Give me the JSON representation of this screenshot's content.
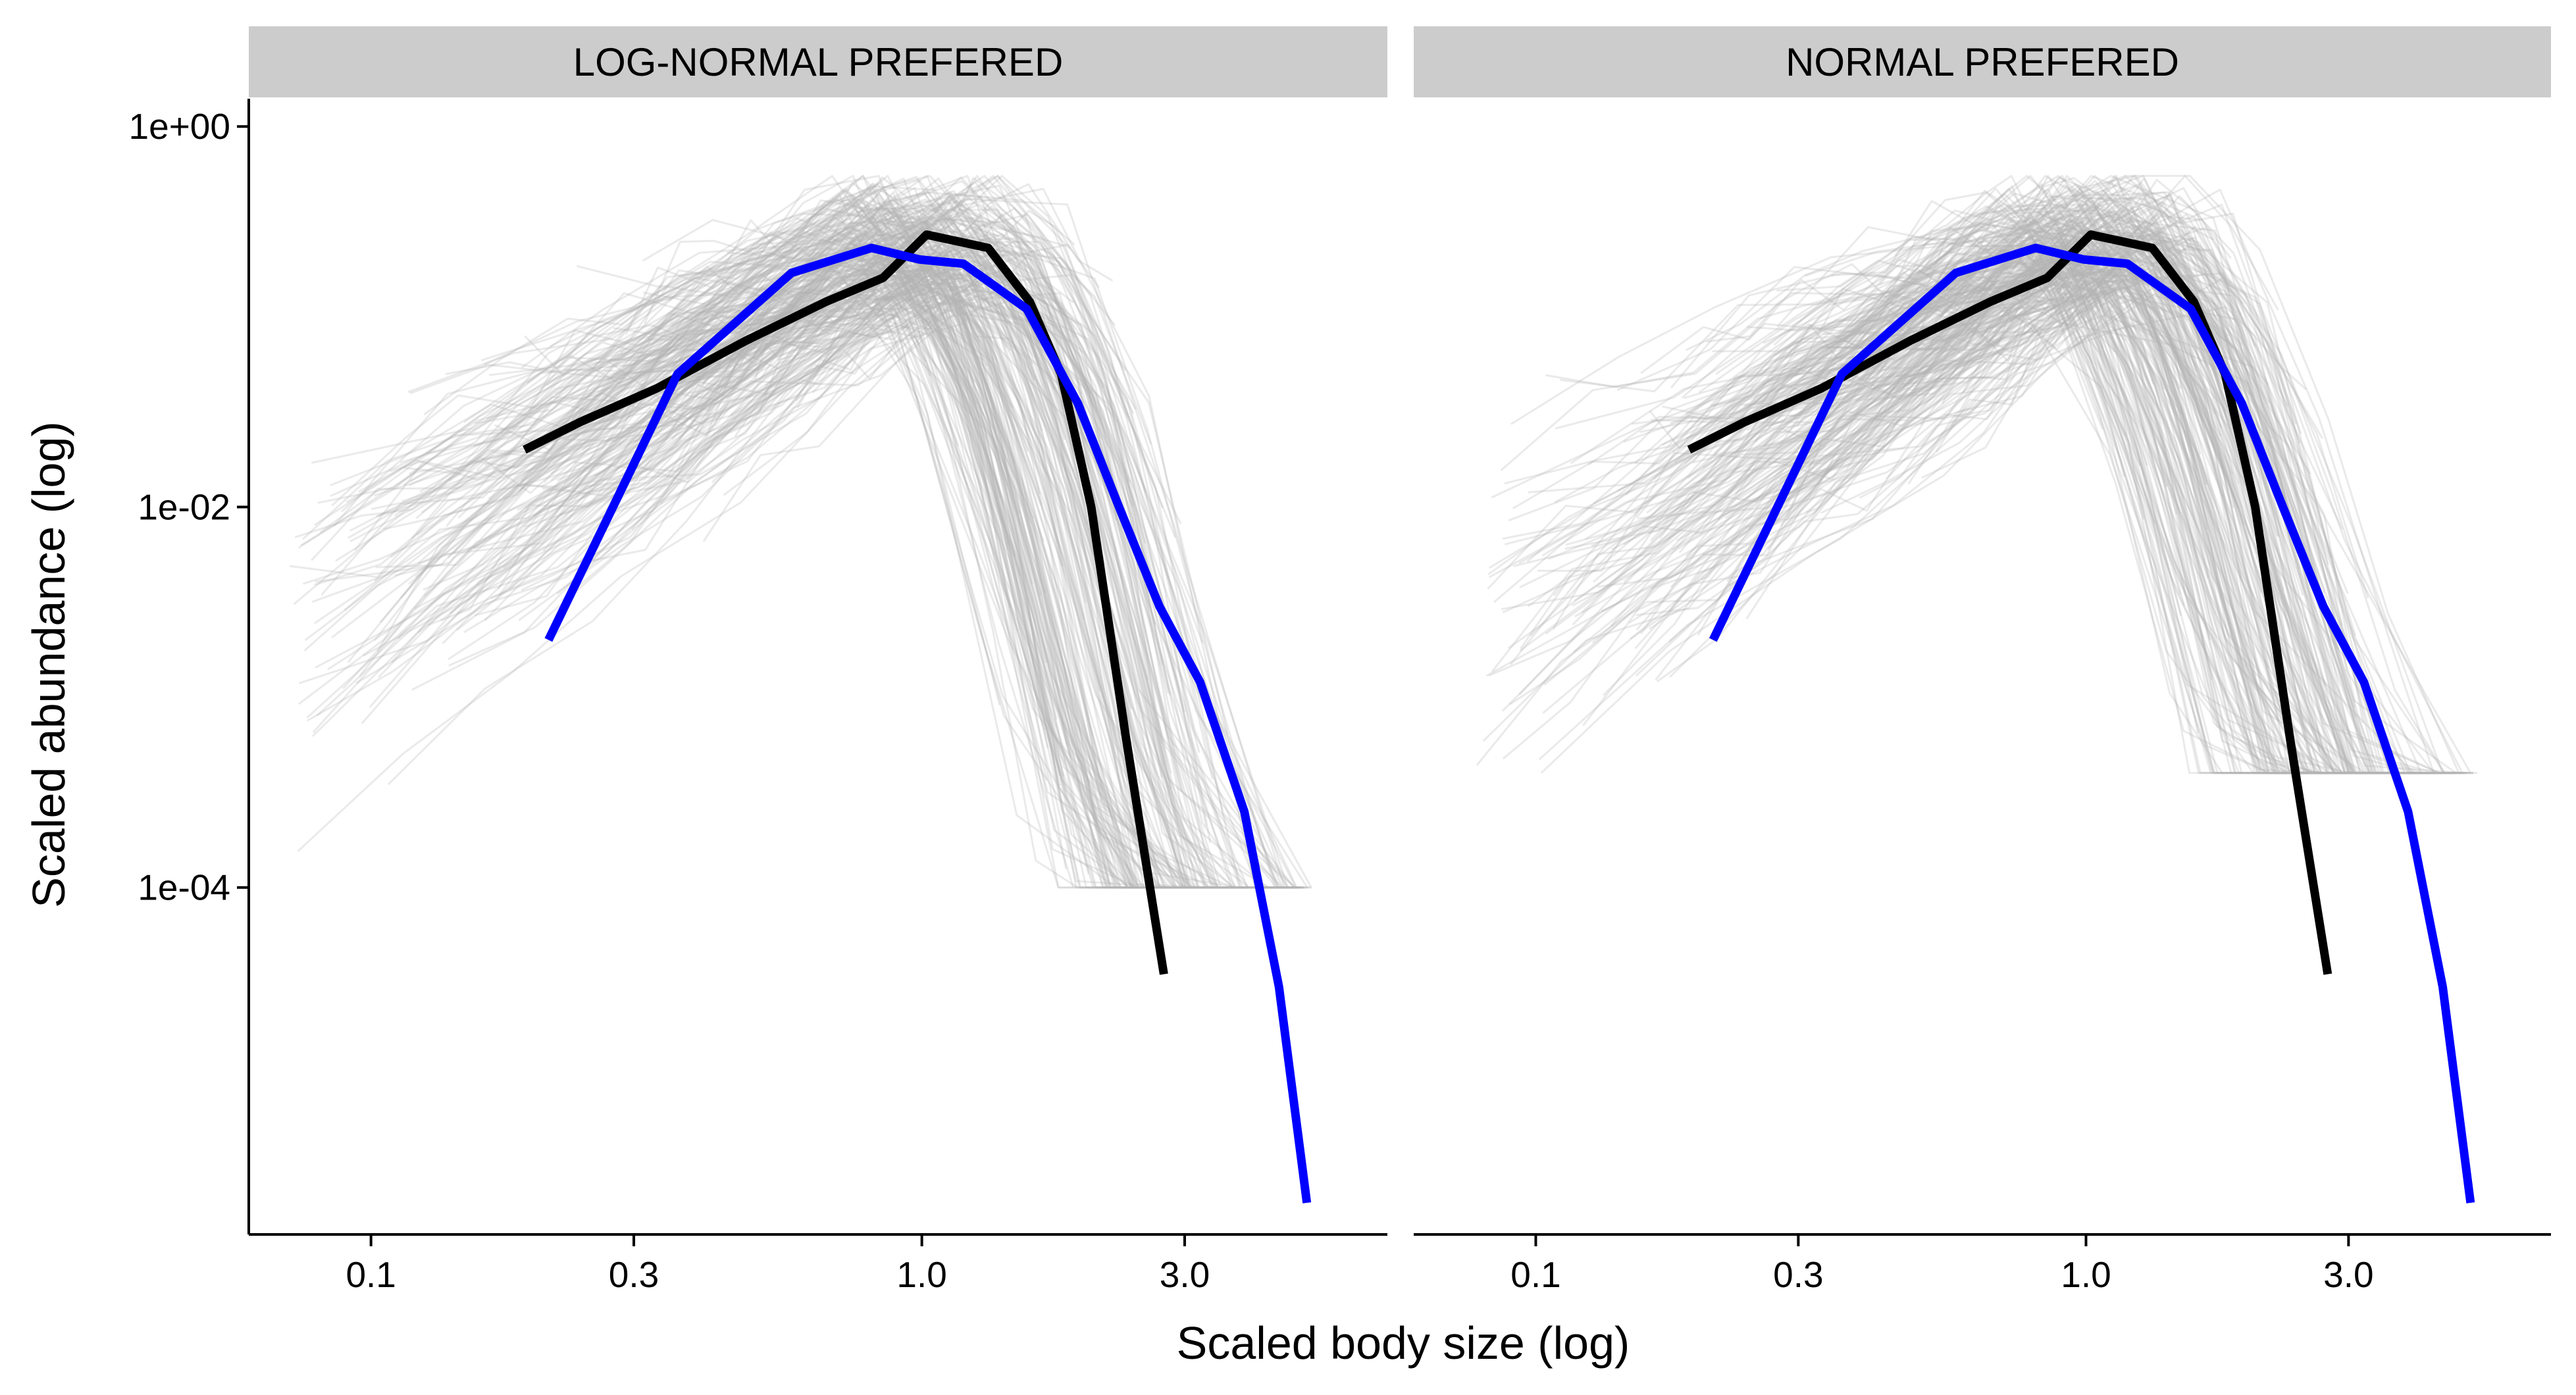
{
  "chart_data": {
    "type": "line",
    "facet_layout": "1x2",
    "xlabel": "Scaled body size (log)",
    "ylabel": "Scaled abundance (log)",
    "x_scale": "log10",
    "y_scale": "log10",
    "xlim": [
      0.06,
      7.0
    ],
    "ylim": [
      1.5e-06,
      1.4
    ],
    "x_ticks": [
      {
        "value": 0.1,
        "label": "0.1"
      },
      {
        "value": 0.3,
        "label": "0.3"
      },
      {
        "value": 1.0,
        "label": "1.0"
      },
      {
        "value": 3.0,
        "label": "3.0"
      }
    ],
    "y_ticks": [
      {
        "value": 1,
        "label": "1e+00"
      },
      {
        "value": 0.01,
        "label": "1e-02"
      },
      {
        "value": 0.0001,
        "label": "1e-04"
      }
    ],
    "grid": false,
    "legend": "none",
    "colors": {
      "strip_bg": "#cccccc",
      "background_lines": "#b3b3b3",
      "black_line": "#000000",
      "blue_line": "#0000ff"
    },
    "panels": [
      {
        "strip": "LOG-NORMAL PREFERED",
        "background_lines": {
          "count_estimate": 300,
          "x_range": [
            0.07,
            5.0
          ],
          "peak_x": 1.0,
          "peak_y": 0.3,
          "y_range": [
            0.0001,
            0.55
          ]
        },
        "series": [
          {
            "color": "#000000",
            "x": [
              0.19,
              0.24,
              0.33,
              0.48,
              0.67,
              0.85,
              1.02,
              1.32,
              1.57,
              1.79,
              2.03,
              2.35,
              2.75
            ],
            "y": [
              0.02,
              0.028,
              0.042,
              0.075,
              0.12,
              0.16,
              0.27,
              0.23,
              0.12,
              0.05,
              0.01,
              0.0006,
              3.5e-05
            ]
          },
          {
            "color": "#0000ff",
            "x": [
              0.21,
              0.36,
              0.58,
              0.81,
              0.99,
              1.19,
              1.55,
              1.92,
              2.28,
              2.7,
              3.2,
              3.85,
              4.45,
              5.0
            ],
            "y": [
              0.002,
              0.05,
              0.17,
              0.23,
              0.2,
              0.19,
              0.11,
              0.035,
              0.01,
              0.003,
              0.0012,
              0.00025,
              3e-05,
              2.2e-06
            ]
          }
        ]
      },
      {
        "strip": "NORMAL PREFERED",
        "background_lines": {
          "count_estimate": 300,
          "x_range": [
            0.08,
            5.0
          ],
          "peak_x": 1.0,
          "peak_y": 0.3,
          "y_range": [
            0.0004,
            0.55
          ]
        },
        "series": [
          {
            "color": "#000000",
            "x": [
              0.19,
              0.24,
              0.33,
              0.48,
              0.67,
              0.85,
              1.02,
              1.32,
              1.57,
              1.79,
              2.03,
              2.35,
              2.75
            ],
            "y": [
              0.02,
              0.028,
              0.042,
              0.075,
              0.12,
              0.16,
              0.27,
              0.23,
              0.12,
              0.05,
              0.01,
              0.0006,
              3.5e-05
            ]
          },
          {
            "color": "#0000ff",
            "x": [
              0.21,
              0.36,
              0.58,
              0.81,
              0.99,
              1.19,
              1.55,
              1.92,
              2.28,
              2.7,
              3.2,
              3.85,
              4.45,
              5.0
            ],
            "y": [
              0.002,
              0.05,
              0.17,
              0.23,
              0.2,
              0.19,
              0.11,
              0.035,
              0.01,
              0.003,
              0.0012,
              0.00025,
              3e-05,
              2.2e-06
            ]
          }
        ]
      }
    ]
  }
}
